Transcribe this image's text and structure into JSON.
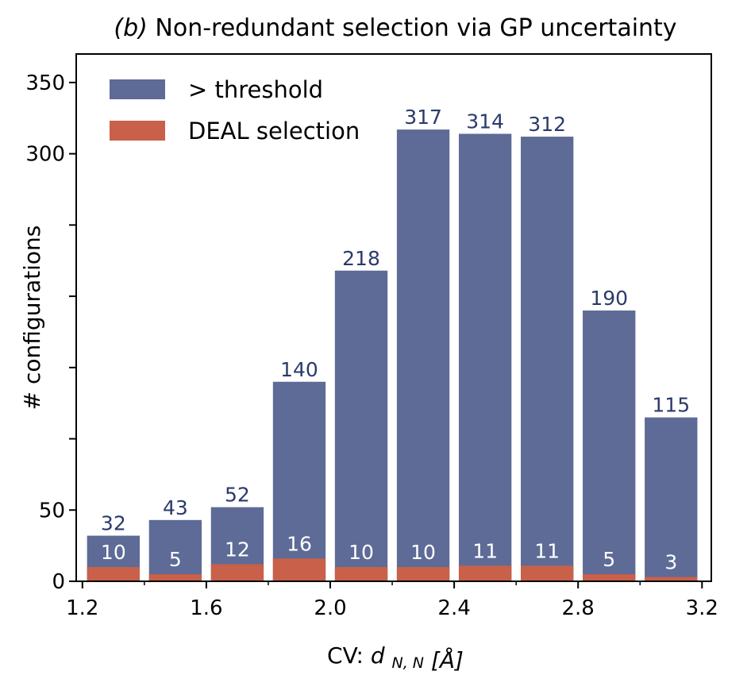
{
  "chart_data": {
    "type": "bar",
    "title_prefix": "(b)",
    "title_text": "Non-redundant selection via GP uncertainty",
    "xlabel_prefix": "CV: ",
    "xlabel_var": "d",
    "xlabel_sub": "N, N",
    "xlabel_unit": "[Å]",
    "ylabel": "# configurations",
    "x": [
      1.3,
      1.5,
      1.7,
      1.9,
      2.1,
      2.3,
      2.5,
      2.7,
      2.9,
      3.1
    ],
    "bar_width": 0.17,
    "xlim": [
      1.18,
      3.23
    ],
    "ylim": [
      0,
      370
    ],
    "xticks": [
      "1.2",
      "1.6",
      "2.0",
      "2.4",
      "2.8",
      "3.2"
    ],
    "xtick_values": [
      1.2,
      1.6,
      2.0,
      2.4,
      2.8,
      3.2
    ],
    "xminor_values": [
      1.4,
      1.8,
      2.2,
      2.6,
      3.0
    ],
    "yticks": [
      "0",
      "50",
      "300",
      "350"
    ],
    "ytick_values": [
      0,
      50,
      300,
      350
    ],
    "yunlabeled_values": [
      100,
      150,
      200,
      250
    ],
    "series": [
      {
        "name": "> threshold",
        "color": "#5d6b96",
        "values": [
          32,
          43,
          52,
          140,
          218,
          317,
          314,
          312,
          190,
          115
        ],
        "labels": [
          "32",
          "43",
          "52",
          "140",
          "218",
          "317",
          "314",
          "312",
          "190",
          "115"
        ]
      },
      {
        "name": "DEAL selection",
        "color": "#c8604a",
        "values": [
          10,
          5,
          12,
          16,
          10,
          10,
          11,
          11,
          5,
          3
        ],
        "labels": [
          "10",
          "5",
          "12",
          "16",
          "10",
          "10",
          "11",
          "11",
          "5",
          "3"
        ]
      }
    ],
    "legend_position": "top-left",
    "grid": false
  }
}
